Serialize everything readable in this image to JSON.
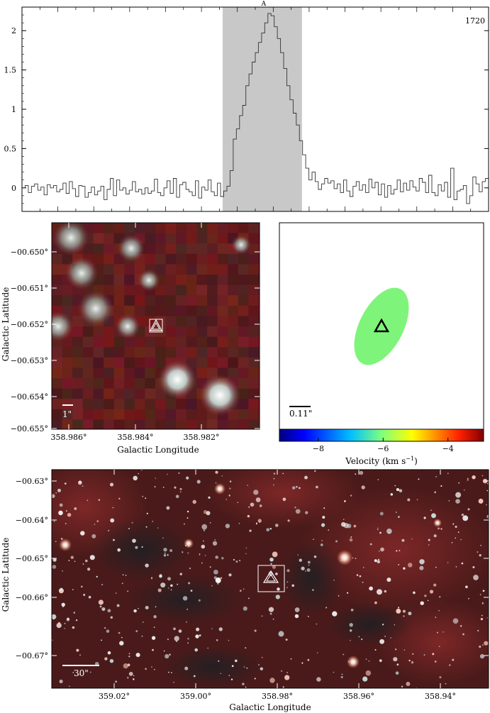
{
  "chart_data": [
    {
      "type": "line",
      "panel": "spectrum",
      "marker_label": "A",
      "corner_label": "1720",
      "ylim": [
        -0.3,
        2.3
      ],
      "yticks": [
        "2",
        "1.5",
        "1",
        "0.5",
        "0"
      ],
      "xlabel": "",
      "ylabel": "",
      "highlight_x_range": [
        0.43,
        0.6
      ],
      "y": [
        0.0,
        0.03,
        -0.06,
        0.02,
        0.05,
        -0.03,
        0.01,
        -0.09,
        0.04,
        0.0,
        0.03,
        -0.05,
        -0.02,
        0.06,
        -0.07,
        0.08,
        -0.01,
        -0.11,
        0.03,
        0.02,
        -0.12,
        -0.06,
        0.01,
        -0.09,
        -0.04,
        0.02,
        -0.15,
        -0.02,
        0.12,
        -0.1,
        0.1,
        -0.03,
        0.0,
        -0.08,
        -0.03,
        0.08,
        -0.05,
        -0.02,
        -0.08,
        0.0,
        -0.07,
        -0.04,
        0.11,
        -0.06,
        -0.1,
        0.0,
        0.09,
        -0.07,
        0.12,
        -0.12,
        0.04,
        0.07,
        -0.02,
        -0.05,
        -0.1,
        0.09,
        -0.13,
        0.01,
        -0.03,
        0.1,
        -0.05,
        -0.1,
        0.06,
        -0.11,
        -0.04,
        0.02,
        0.22,
        0.62,
        0.75,
        0.92,
        1.05,
        1.3,
        1.45,
        1.6,
        1.72,
        1.85,
        1.97,
        2.1,
        2.22,
        2.19,
        2.05,
        1.9,
        1.72,
        1.52,
        1.3,
        1.12,
        0.95,
        0.8,
        0.6,
        0.42,
        0.25,
        0.1,
        0.2,
        0.08,
        -0.02,
        0.05,
        0.12,
        0.06,
        0.09,
        -0.01,
        0.05,
        -0.06,
        0.1,
        -0.04,
        -0.11,
        0.02,
        0.08,
        -0.03,
        0.04,
        -0.06,
        0.11,
        0.0,
        0.07,
        -0.09,
        0.05,
        -0.12,
        0.03,
        -0.08,
        -0.02,
        0.1,
        -0.05,
        0.06,
        -0.03,
        0.09,
        0.01,
        -0.04,
        0.12,
        0.07,
        -0.06,
        0.16,
        -0.06,
        -0.1,
        0.04,
        -0.04,
        0.07,
        -0.12,
        0.25,
        -0.15,
        -0.04,
        -0.02,
        0.03,
        -0.2,
        -0.1,
        0.14,
        0.05,
        -0.05,
        0.08,
        0.12
      ]
    },
    {
      "type": "heatmap",
      "panel": "zoom-image",
      "xlabel": "Galactic Longitude",
      "ylabel": "Galactic Latitude",
      "xticks": [
        "358.986°",
        "358.984°",
        "358.982°"
      ],
      "yticks": [
        "−00.650°",
        "−00.651°",
        "−00.652°",
        "−00.653°",
        "−00.654°",
        "−00.655°"
      ],
      "scale_bar": "1\"",
      "source_position": {
        "l": 358.9829,
        "b": -0.6522
      }
    },
    {
      "type": "heatmap",
      "panel": "velocity-map",
      "scale_bar": "0.11\"",
      "colorbar_ticks": [
        "−8",
        "−6",
        "−4"
      ],
      "colorbar_range": [
        -9.2,
        -2.9
      ],
      "colorbar_label": "Velocity (km s",
      "colorbar_label_sup": "−1",
      "colorbar_label_close": ")",
      "colors": {
        "ellipse": "#7ef57a"
      }
    },
    {
      "type": "heatmap",
      "panel": "wide-image",
      "xlabel": "Galactic Longitude",
      "ylabel": "Galactic Latitude",
      "xticks": [
        "359.02°",
        "359.00°",
        "358.98°",
        "358.96°",
        "358.94°"
      ],
      "yticks": [
        "−00.63°",
        "−00.64°",
        "−00.65°",
        "−00.66°",
        "−00.67°"
      ],
      "scale_bar": "30\"",
      "source_position": {
        "l": 358.983,
        "b": -0.6522
      }
    }
  ]
}
